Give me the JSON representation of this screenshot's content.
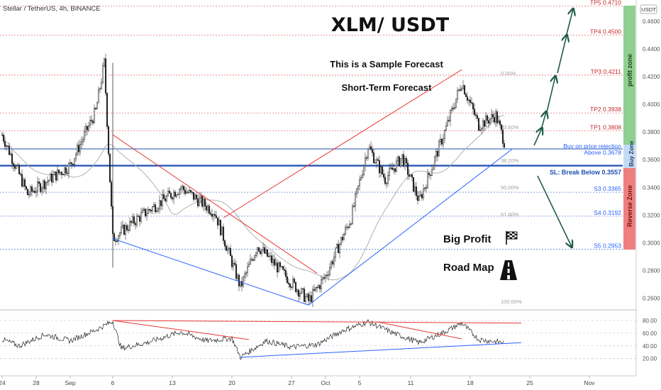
{
  "header": {
    "symbol_text": "Stellar / TetherUS, 4h, BINANCE",
    "currency_badge": "USDT",
    "big_title": "XLM/ USDT",
    "subtitle_1": "This is a Sample Forecast",
    "subtitle_2": "Short-Term Forecast"
  },
  "annotations": {
    "big_profit": "Big Profit",
    "road_map": "Road Map",
    "buy_rejection_1": "Buy on price rejection",
    "buy_rejection_2": "Above 0.3678",
    "sl_text": "SL: Break Below 0.3557",
    "profit_zone": "profit zone",
    "buy_zone": "Buy Zone",
    "reverse_zone": "Reverse Zone"
  },
  "colors": {
    "candle_up": "#26a69a",
    "candle_down": "#ef5350",
    "wick": "#333333",
    "trend_red": "#e53935",
    "trend_blue": "#2962ff",
    "level_blue": "#1e4fb0",
    "arrow_green": "#1f5c4a",
    "profit_zone": "#8fcf8f",
    "buy_zone": "#c5dbf3",
    "reverse_zone": "#ef7f7f",
    "ma_gray": "#b0b0b0"
  },
  "chart_data": [
    {
      "type": "candlestick",
      "title": "XLM/ USDT",
      "x_ticks": [
        "24",
        "28",
        "Sep",
        "6",
        "13",
        "20",
        "27",
        "Oct",
        "5",
        "11",
        "18",
        "25",
        "Nov"
      ],
      "y_ticks": [
        "0.4600",
        "0.4400",
        "0.4200",
        "0.4000",
        "0.3800",
        "0.3600",
        "0.3400",
        "0.3200",
        "0.3000",
        "0.2800",
        "0.2600"
      ],
      "ylim": [
        0.253,
        0.4735
      ],
      "approx_close_path": [
        {
          "x": "Aug 24",
          "y": 0.378
        },
        {
          "x": "Aug 27",
          "y": 0.335
        },
        {
          "x": "Sep 1",
          "y": 0.356
        },
        {
          "x": "Sep 4",
          "y": 0.395
        },
        {
          "x": "Sep 5",
          "y": 0.43
        },
        {
          "x": "Sep 6",
          "y": 0.303
        },
        {
          "x": "Sep 9",
          "y": 0.318
        },
        {
          "x": "Sep 14",
          "y": 0.34
        },
        {
          "x": "Sep 18",
          "y": 0.322
        },
        {
          "x": "Sep 21",
          "y": 0.268
        },
        {
          "x": "Sep 23",
          "y": 0.298
        },
        {
          "x": "Sep 26",
          "y": 0.278
        },
        {
          "x": "Sep 29",
          "y": 0.258
        },
        {
          "x": "Oct 1",
          "y": 0.276
        },
        {
          "x": "Oct 4",
          "y": 0.318
        },
        {
          "x": "Oct 6",
          "y": 0.37
        },
        {
          "x": "Oct 8",
          "y": 0.346
        },
        {
          "x": "Oct 10",
          "y": 0.362
        },
        {
          "x": "Oct 12",
          "y": 0.33
        },
        {
          "x": "Oct 15",
          "y": 0.38
        },
        {
          "x": "Oct 17",
          "y": 0.416
        },
        {
          "x": "Oct 19",
          "y": 0.385
        },
        {
          "x": "Oct 21",
          "y": 0.392
        },
        {
          "x": "Oct 22",
          "y": 0.373
        }
      ],
      "levels": [
        {
          "label": "TP5",
          "value": 0.471,
          "style": "red-dotted"
        },
        {
          "label": "TP4",
          "value": 0.45,
          "style": "red-dotted"
        },
        {
          "label": "TP3",
          "value": 0.4211,
          "style": "red-dotted"
        },
        {
          "label": "TP2",
          "value": 0.3938,
          "style": "red-dotted"
        },
        {
          "label": "TP1",
          "value": 0.3808,
          "style": "red-dotted"
        },
        {
          "label": "Buy",
          "value": 0.3678,
          "style": "blue-solid"
        },
        {
          "label": "SL",
          "value": 0.3557,
          "style": "blue-thick"
        },
        {
          "label": "S3",
          "value": 0.3365,
          "style": "blue-dotted"
        },
        {
          "label": "S4",
          "value": 0.3192,
          "style": "blue-dotted"
        },
        {
          "label": "S5",
          "value": 0.2953,
          "style": "blue-dotted"
        }
      ],
      "level_labels": [
        "TP5 0.4710",
        "TP4 0.4500",
        "TP3 0.4211",
        "TP2 0.3938",
        "TP1 0.3808",
        "S3 0.3365",
        "S4 0.3192",
        "S5 0.2953"
      ],
      "fib_levels": [
        "0.00%",
        "23.60%",
        "38.20%",
        "50.00%",
        "61.80%",
        "100.00%"
      ]
    },
    {
      "type": "line",
      "title": "",
      "y_ticks": [
        "80.00",
        "60.00",
        "40.00",
        "20.00"
      ],
      "ylim": [
        15,
        88
      ],
      "approx_path": [
        {
          "x": "Aug 24",
          "y": 50
        },
        {
          "x": "Aug 26",
          "y": 40
        },
        {
          "x": "Aug 29",
          "y": 58
        },
        {
          "x": "Sep 1",
          "y": 48
        },
        {
          "x": "Sep 4",
          "y": 65
        },
        {
          "x": "Sep 6",
          "y": 79
        },
        {
          "x": "Sep 7",
          "y": 36
        },
        {
          "x": "Sep 10",
          "y": 45
        },
        {
          "x": "Sep 14",
          "y": 62
        },
        {
          "x": "Sep 17",
          "y": 48
        },
        {
          "x": "Sep 20",
          "y": 52
        },
        {
          "x": "Sep 21",
          "y": 22
        },
        {
          "x": "Sep 24",
          "y": 48
        },
        {
          "x": "Sep 27",
          "y": 38
        },
        {
          "x": "Sep 30",
          "y": 42
        },
        {
          "x": "Oct 3",
          "y": 64
        },
        {
          "x": "Oct 6",
          "y": 78
        },
        {
          "x": "Oct 9",
          "y": 60
        },
        {
          "x": "Oct 12",
          "y": 45
        },
        {
          "x": "Oct 15",
          "y": 62
        },
        {
          "x": "Oct 17",
          "y": 76
        },
        {
          "x": "Oct 19",
          "y": 50
        },
        {
          "x": "Oct 22",
          "y": 45
        }
      ]
    }
  ]
}
